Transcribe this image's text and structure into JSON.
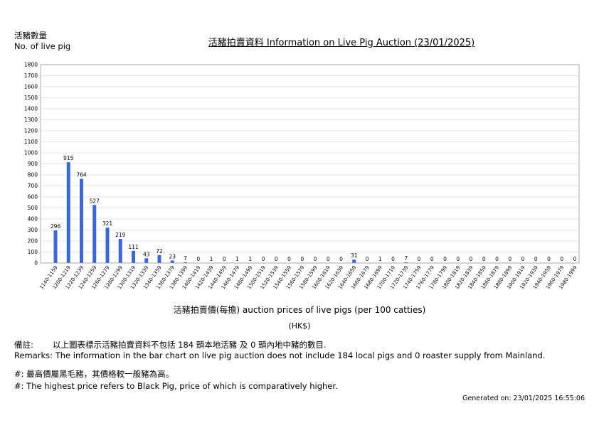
{
  "header": {
    "ylabel_zh": "活豬數量",
    "ylabel_en": "No. of live pig",
    "title": "活豬拍賣資料 Information on Live Pig Auction (23/01/2025)"
  },
  "axis": {
    "xlabel": "活豬拍賣價(每擔) auction prices of live pigs (per 100 catties)",
    "unit": "(HK$)"
  },
  "remarks": {
    "head": "備註:",
    "zh": "以上圖表標示活豬拍賣資料不包括 184 頭本地活豬 及 0 頭內地中豬的數目.",
    "en": "Remarks: The information in the bar chart on live pig auction does not include 184 local pigs and 0 roaster supply from Mainland.",
    "note_zh": "#: 最高價屬黑毛豬，其價格較一般豬為高。",
    "note_en": "#: The highest price refers to Black Pig, price of which is comparatively higher."
  },
  "footer": {
    "generated": "Generated on: 23/01/2025 16:55:06"
  },
  "colors": {
    "bar": "#3a66e0",
    "grid": "#dddddd",
    "axis": "#999999"
  },
  "chart_data": {
    "type": "bar",
    "title": "活豬拍賣資料 Information on Live Pig Auction (23/01/2025)",
    "xlabel": "活豬拍賣價(每擔) auction prices of live pigs (per 100 catties)",
    "ylabel": "活豬數量 No. of live pig",
    "ylim": [
      0,
      1800
    ],
    "yticks": [
      0,
      100,
      200,
      300,
      400,
      500,
      600,
      700,
      800,
      900,
      1000,
      1100,
      1200,
      1300,
      1400,
      1500,
      1600,
      1700,
      1800
    ],
    "grid": true,
    "categories": [
      "1140-1159",
      "1200-1219",
      "1220-1239",
      "1240-1259",
      "1260-1279",
      "1280-1299",
      "1300-1319",
      "1320-1339",
      "1340-1359",
      "1360-1379",
      "1380-1399",
      "1400-1419",
      "1420-1439",
      "1440-1459",
      "1460-1479",
      "1480-1499",
      "1500-1519",
      "1520-1539",
      "1540-1559",
      "1560-1579",
      "1580-1599",
      "1600-1619",
      "1620-1639",
      "1640-1659",
      "1660-1679",
      "1680-1699",
      "1700-1719",
      "1720-1739",
      "1740-1759",
      "1760-1779",
      "1780-1799",
      "1800-1819",
      "1820-1839",
      "1840-1859",
      "1860-1879",
      "1880-1899",
      "1900-1919",
      "1920-1939",
      "1940-1959",
      "1960-1979",
      "1980-1999"
    ],
    "values": [
      296,
      915,
      764,
      527,
      321,
      219,
      111,
      43,
      72,
      23,
      7,
      0,
      1,
      0,
      1,
      1,
      0,
      0,
      0,
      0,
      0,
      0,
      0,
      31,
      0,
      1,
      0,
      7,
      0,
      0,
      0,
      0,
      0,
      0,
      0,
      0,
      0,
      0,
      0,
      0,
      0
    ]
  }
}
